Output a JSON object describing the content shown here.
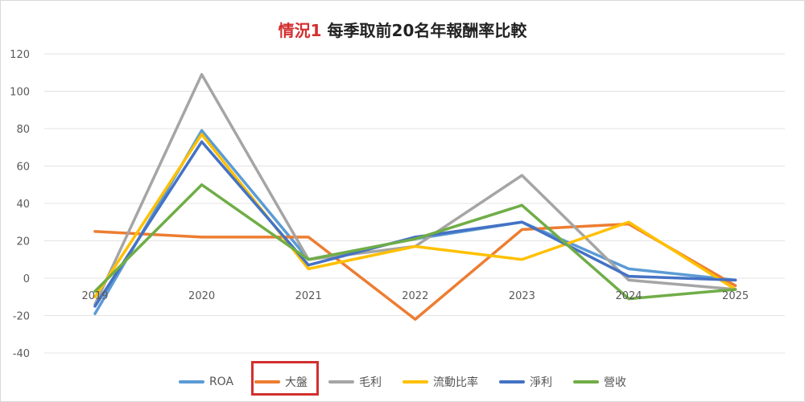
{
  "chart_data": {
    "type": "line",
    "title": {
      "highlight": "情況1",
      "rest": " 每季取前20名年報酬率比較"
    },
    "x": [
      "2019",
      "2020",
      "2021",
      "2022",
      "2023",
      "2024",
      "2025"
    ],
    "ylim": [
      -40,
      120
    ],
    "yticks": [
      -40,
      -20,
      0,
      20,
      40,
      60,
      80,
      100,
      120
    ],
    "grid": true,
    "legend_position": "bottom",
    "highlighted_legend": "大盤",
    "series": [
      {
        "name": "ROA",
        "color": "#5b9bd5",
        "values": [
          -19,
          79,
          10,
          21,
          30,
          5,
          -1
        ]
      },
      {
        "name": "大盤",
        "color": "#ed7d31",
        "values": [
          25,
          22,
          22,
          -22,
          26,
          29,
          -4
        ]
      },
      {
        "name": "毛利",
        "color": "#a5a5a5",
        "values": [
          -14,
          109,
          10,
          17,
          55,
          -1,
          -6
        ]
      },
      {
        "name": "流動比率",
        "color": "#ffc000",
        "values": [
          -10,
          77,
          5,
          17,
          10,
          30,
          -6
        ]
      },
      {
        "name": "淨利",
        "color": "#4472c4",
        "values": [
          -15,
          73,
          7,
          22,
          30,
          1,
          -1
        ]
      },
      {
        "name": "營收",
        "color": "#70ad47",
        "values": [
          -7,
          50,
          10,
          21,
          39,
          -11,
          -6
        ]
      }
    ]
  }
}
